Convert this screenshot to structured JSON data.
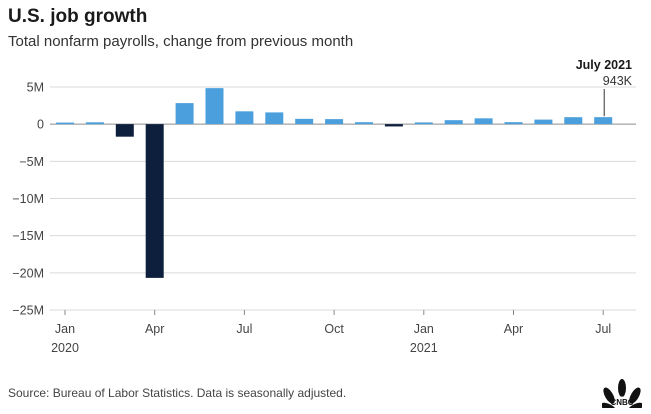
{
  "title": "U.S. job growth",
  "subtitle": "Total nonfarm payrolls, change from previous month",
  "source": "Source: Bureau of Labor Statistics. Data is seasonally adjusted.",
  "logo_text": "CNBC",
  "colors": {
    "positive": "#4a9fdc",
    "negative": "#0d1f3c",
    "grid": "#d9d9d9",
    "axis": "#444444"
  },
  "annotation": {
    "title": "July 2021",
    "value": "943K"
  },
  "chart_data": {
    "type": "bar",
    "categories": [
      "Jan 2020",
      "Feb 2020",
      "Mar 2020",
      "Apr 2020",
      "May 2020",
      "Jun 2020",
      "Jul 2020",
      "Aug 2020",
      "Sep 2020",
      "Oct 2020",
      "Nov 2020",
      "Dec 2020",
      "Jan 2021",
      "Feb 2021",
      "Mar 2021",
      "Apr 2021",
      "May 2021",
      "Jun 2021",
      "Jul 2021"
    ],
    "values": [
      0.214,
      0.251,
      -1.683,
      -20.679,
      2.833,
      4.846,
      1.726,
      1.583,
      0.716,
      0.68,
      0.264,
      -0.306,
      0.233,
      0.536,
      0.785,
      0.269,
      0.614,
      0.938,
      0.943
    ],
    "unit": "millions",
    "ylim": [
      -25,
      5
    ],
    "yticks": [
      5,
      0,
      -5,
      -10,
      -15,
      -20,
      -25
    ],
    "ytick_labels": [
      "5M",
      "0",
      "−5M",
      "−10M",
      "−15M",
      "−20M",
      "−25M"
    ],
    "xtick_labels": [
      {
        "index": 0,
        "month": "Jan",
        "year": "2020"
      },
      {
        "index": 3,
        "month": "Apr",
        "year": ""
      },
      {
        "index": 6,
        "month": "Jul",
        "year": ""
      },
      {
        "index": 9,
        "month": "Oct",
        "year": ""
      },
      {
        "index": 12,
        "month": "Jan",
        "year": "2021"
      },
      {
        "index": 15,
        "month": "Apr",
        "year": ""
      },
      {
        "index": 18,
        "month": "Jul",
        "year": ""
      }
    ],
    "grid": true
  }
}
